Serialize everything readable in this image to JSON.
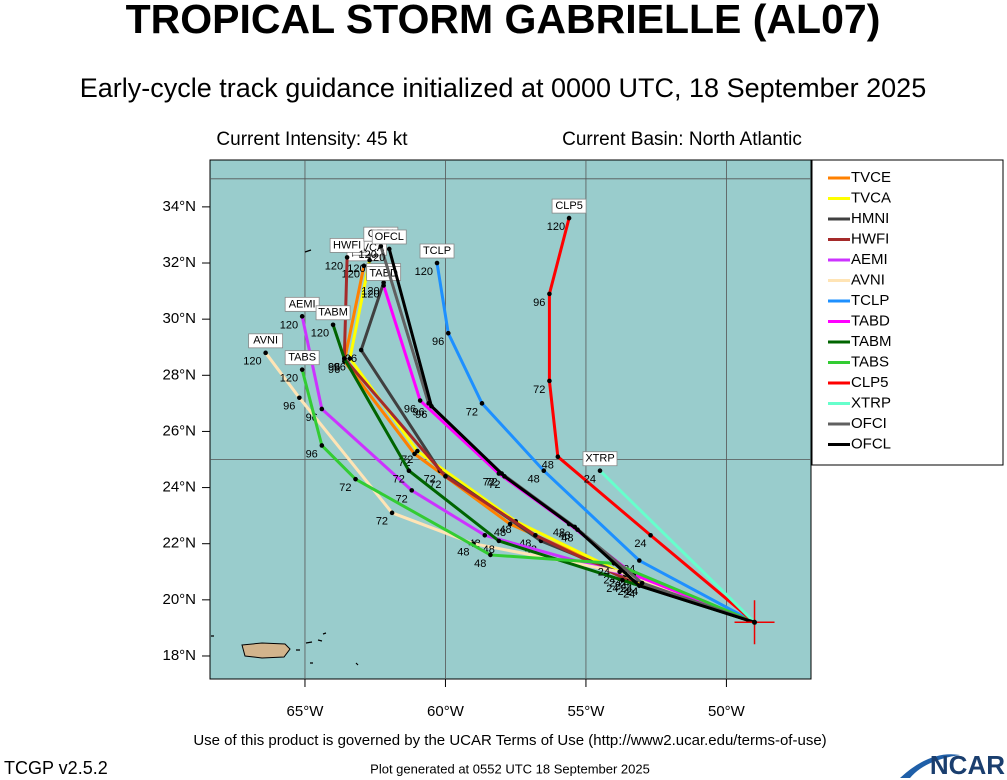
{
  "header": {
    "title": "TROPICAL STORM GABRIELLE (AL07)",
    "subtitle": "Early-cycle track guidance initialized at 0000 UTC, 18 September 2025",
    "intensity": "Current Intensity: 45 kt",
    "basin": "Current Basin: North Atlantic"
  },
  "chart_data": {
    "type": "track-map",
    "xlim": [
      -68.38,
      -46.99
    ],
    "ylim": [
      17.18,
      35.67
    ],
    "xticks": [
      {
        "value": -65,
        "label": "65°W"
      },
      {
        "value": -60,
        "label": "60°W"
      },
      {
        "value": -55,
        "label": "55°W"
      },
      {
        "value": -50,
        "label": "50°W"
      }
    ],
    "yticks": [
      {
        "value": 18,
        "label": "18°N"
      },
      {
        "value": 20,
        "label": "20°N"
      },
      {
        "value": 22,
        "label": "22°N"
      },
      {
        "value": 24,
        "label": "24°N"
      },
      {
        "value": 26,
        "label": "26°N"
      },
      {
        "value": 28,
        "label": "28°N"
      },
      {
        "value": 30,
        "label": "30°N"
      },
      {
        "value": 32,
        "label": "32°N"
      },
      {
        "value": 34,
        "label": "34°N"
      }
    ],
    "grid_lon": [
      -65,
      -60,
      -55,
      -50
    ],
    "grid_lat": [
      25,
      35
    ],
    "storm_position": [
      -49.0,
      19.2
    ],
    "series": [
      {
        "name": "TVCE",
        "color": "#ff8000",
        "lon": [
          -49.0,
          -53.0,
          -57.7,
          -61.1,
          -63.6,
          -62.9
        ],
        "lat": [
          19.2,
          20.6,
          22.7,
          25.2,
          28.5,
          31.9
        ],
        "labels": [
          null,
          "24",
          "48",
          "72",
          "96",
          "120"
        ]
      },
      {
        "name": "TVCA",
        "color": "#ffff00",
        "lon": [
          -49.0,
          -53.2,
          -57.5,
          -61.0,
          -63.4,
          -62.7
        ],
        "lat": [
          19.2,
          20.7,
          22.8,
          25.3,
          28.6,
          32.1
        ],
        "labels": [
          null,
          "24",
          "48",
          "72",
          "96",
          "120"
        ]
      },
      {
        "name": "HMNI",
        "color": "#404040",
        "lon": [
          -49.0,
          -53.4,
          -56.6,
          -60.2,
          -63.0,
          -62.2
        ],
        "lat": [
          19.2,
          20.8,
          22.1,
          24.6,
          28.9,
          31.3
        ],
        "labels": [
          null,
          "24",
          "48",
          "72",
          "96",
          "120"
        ]
      },
      {
        "name": "HWFI",
        "color": "#a52a2a",
        "lon": [
          -49.0,
          -53.3,
          -56.8,
          -60.0,
          -63.6,
          -63.5
        ],
        "lat": [
          19.2,
          20.6,
          22.3,
          24.4,
          28.6,
          32.2
        ],
        "labels": [
          null,
          "24",
          "48",
          "72",
          "96",
          "120"
        ]
      },
      {
        "name": "AEMI",
        "color": "#cc33ff",
        "lon": [
          -49.0,
          -53.6,
          -58.6,
          -61.2,
          -64.4,
          -65.1
        ],
        "lat": [
          19.2,
          20.9,
          22.3,
          23.9,
          26.8,
          30.1
        ],
        "labels": [
          null,
          "24",
          "48",
          "72",
          "96",
          "120"
        ]
      },
      {
        "name": "AVNI",
        "color": "#ffe4b5",
        "lon": [
          -49.0,
          -53.8,
          -59.0,
          -61.9,
          -65.2,
          -66.4
        ],
        "lat": [
          19.2,
          21.0,
          22.0,
          23.1,
          27.2,
          28.8
        ],
        "labels": [
          null,
          "24",
          "48",
          "72",
          "96",
          "120"
        ]
      },
      {
        "name": "TCLP",
        "color": "#1e90ff",
        "lon": [
          -49.0,
          -53.1,
          -56.5,
          -58.7,
          -59.9,
          -60.3
        ],
        "lat": [
          19.2,
          21.4,
          24.6,
          27.0,
          29.5,
          32.0
        ],
        "labels": [
          null,
          "24",
          "48",
          "72",
          "96",
          "120"
        ]
      },
      {
        "name": "TABD",
        "color": "#ff00ff",
        "lon": [
          -49.0,
          -53.3,
          -55.6,
          -58.1,
          -60.9,
          -62.2
        ],
        "lat": [
          19.2,
          20.9,
          22.7,
          24.5,
          27.1,
          31.2
        ],
        "labels": [
          null,
          "24",
          "48",
          "72",
          "96",
          "120"
        ]
      },
      {
        "name": "TABM",
        "color": "#006400",
        "lon": [
          -49.0,
          -53.7,
          -58.1,
          -61.3,
          -63.6,
          -64.0
        ],
        "lat": [
          19.2,
          20.7,
          22.1,
          24.6,
          28.6,
          29.8
        ],
        "labels": [
          null,
          "24",
          "48",
          "72",
          "96",
          "120"
        ]
      },
      {
        "name": "TABS",
        "color": "#33cc33",
        "lon": [
          -49.0,
          -54.0,
          -58.4,
          -63.2,
          -64.4,
          -65.1
        ],
        "lat": [
          19.2,
          21.3,
          21.6,
          24.3,
          25.5,
          28.2
        ],
        "labels": [
          null,
          "24",
          "48",
          "72",
          "96",
          "120"
        ]
      },
      {
        "name": "CLP5",
        "color": "#ff0000",
        "lon": [
          -49.0,
          -52.7,
          -56.0,
          -56.3,
          -56.3,
          -55.6
        ],
        "lat": [
          19.2,
          22.3,
          25.1,
          27.8,
          30.9,
          33.6
        ],
        "labels": [
          null,
          "24",
          "48",
          "72",
          "96",
          "120"
        ]
      },
      {
        "name": "XTRP",
        "color": "#66ffcc",
        "lon": [
          -49.0,
          -54.5
        ],
        "lat": [
          19.2,
          24.6
        ],
        "labels": [
          null,
          "24"
        ]
      },
      {
        "name": "OFCI",
        "color": "#606060",
        "lon": [
          -49.0,
          -53.0,
          -55.4,
          -58.0,
          -60.6,
          -62.3
        ],
        "lat": [
          19.2,
          20.6,
          22.6,
          24.5,
          27.0,
          32.6
        ],
        "labels": [
          null,
          "24",
          "48",
          "72",
          "96",
          "120"
        ]
      },
      {
        "name": "OFCL",
        "color": "#000000",
        "lon": [
          -49.0,
          -53.1,
          -55.3,
          -57.9,
          -60.5,
          -62.0
        ],
        "lat": [
          19.2,
          20.5,
          22.5,
          24.4,
          26.9,
          32.5
        ],
        "labels": [
          null,
          "24",
          "48",
          "72",
          "96",
          "120"
        ]
      }
    ]
  },
  "footer": {
    "terms": "Use of this product is governed by the UCAR Terms of Use (http://www2.ucar.edu/terms-of-use)",
    "version": "TCGP v2.5.2",
    "generated": "Plot generated at 0552 UTC   18 September 2025",
    "logo": "NCAR"
  }
}
